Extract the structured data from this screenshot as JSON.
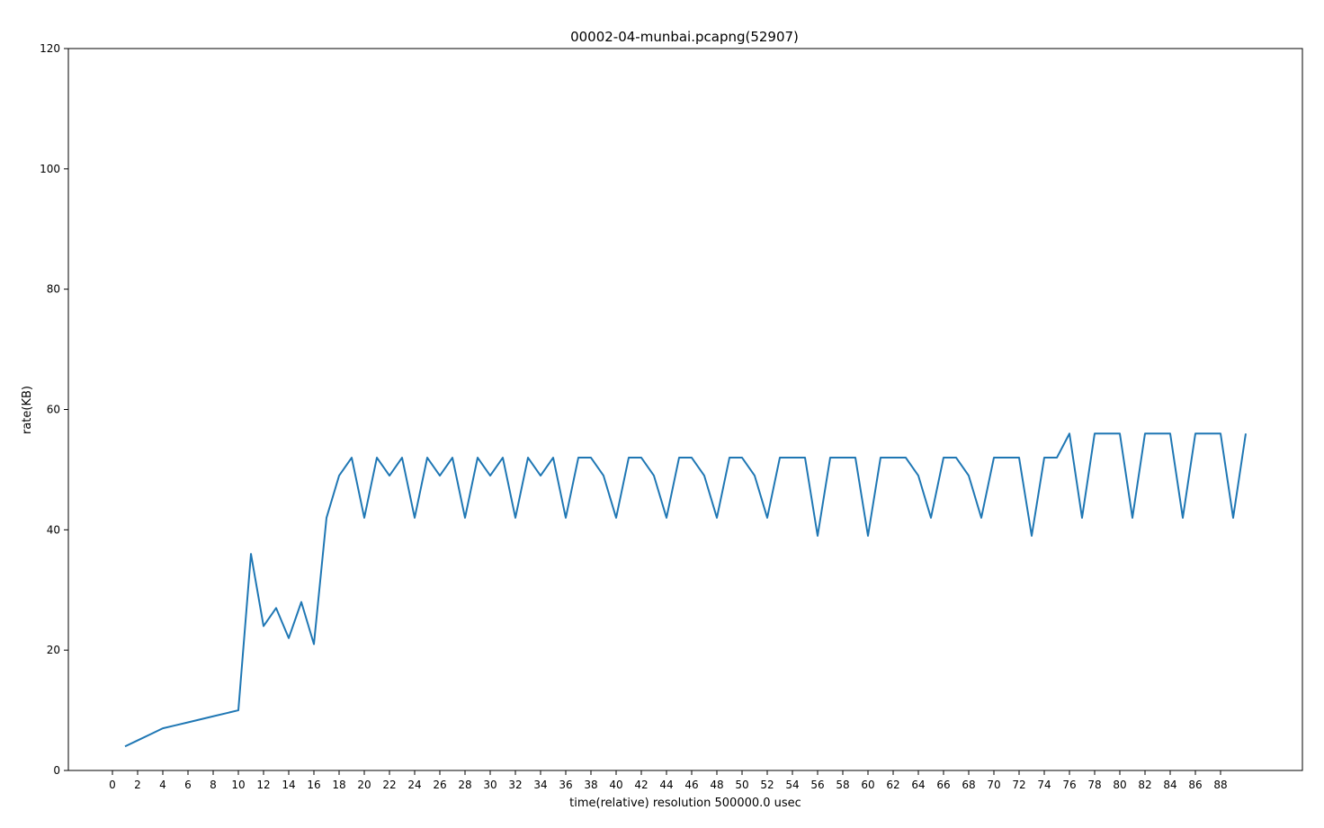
{
  "chart_data": {
    "type": "line",
    "title": "00002-04-munbai.pcapng(52907)",
    "xlabel": "time(relative) resolution 500000.0 usec",
    "ylabel": "rate(KB)",
    "xlim": [
      -3.5,
      94.5
    ],
    "ylim": [
      0,
      120
    ],
    "xticks": [
      0,
      2,
      4,
      6,
      8,
      10,
      12,
      14,
      16,
      18,
      20,
      22,
      24,
      26,
      28,
      30,
      32,
      34,
      36,
      38,
      40,
      42,
      44,
      46,
      48,
      50,
      52,
      54,
      56,
      58,
      60,
      62,
      64,
      66,
      68,
      70,
      72,
      74,
      76,
      78,
      80,
      82,
      84,
      86,
      88
    ],
    "yticks": [
      0,
      20,
      40,
      60,
      80,
      100,
      120
    ],
    "grid": false,
    "color": "#1f77b4",
    "series": [
      {
        "x": [
          1,
          2,
          3,
          4,
          5,
          6,
          7,
          8,
          9,
          10,
          11,
          12,
          13,
          14,
          15,
          16,
          17,
          18,
          19,
          20,
          21,
          22,
          23,
          24,
          25,
          26,
          27,
          28,
          29,
          30,
          31,
          32,
          33,
          34,
          35,
          36,
          37,
          38,
          39,
          40,
          41,
          42,
          43,
          44,
          45,
          46,
          47,
          48,
          49,
          50,
          51,
          52,
          53,
          54,
          55,
          56,
          57,
          58,
          59,
          60,
          61,
          62,
          63,
          64,
          65,
          66,
          67,
          68,
          69,
          70,
          71,
          72,
          73,
          74,
          75,
          76,
          77,
          78,
          79,
          80,
          81,
          82,
          83,
          84,
          85,
          86,
          87,
          88,
          89,
          90
        ],
        "values": [
          4,
          5,
          6,
          7,
          7.5,
          8,
          8.5,
          9,
          9.5,
          10,
          36,
          24,
          27,
          22,
          28,
          21,
          42,
          49,
          52,
          42,
          52,
          49,
          52,
          42,
          52,
          49,
          52,
          42,
          52,
          49,
          52,
          42,
          52,
          49,
          52,
          42,
          52,
          52,
          49,
          42,
          52,
          52,
          49,
          42,
          52,
          52,
          49,
          42,
          52,
          52,
          49,
          42,
          52,
          52,
          52,
          39,
          52,
          52,
          52,
          39,
          52,
          52,
          52,
          49,
          42,
          52,
          52,
          49,
          42,
          52,
          52,
          52,
          39,
          52,
          52,
          56,
          42,
          56,
          56,
          56,
          42,
          56,
          56,
          56,
          42,
          56,
          56,
          56,
          42,
          56
        ]
      }
    ]
  }
}
